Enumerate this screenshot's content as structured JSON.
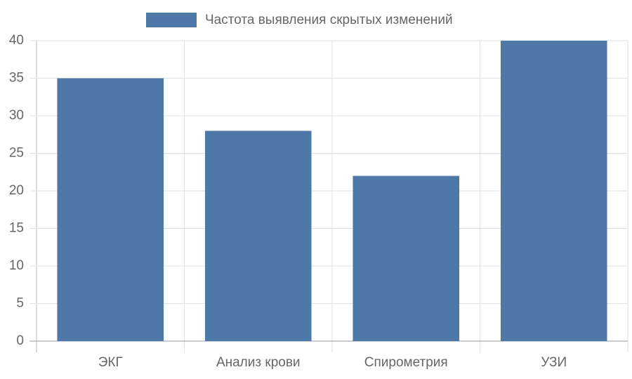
{
  "chart_data": {
    "type": "bar",
    "categories": [
      "ЭКГ",
      "Анализ крови",
      "Спирометрия",
      "УЗИ"
    ],
    "series": [
      {
        "name": "Частота выявления скрытых изменений",
        "color": "#4e78a7",
        "values": [
          35,
          28,
          22,
          40
        ]
      }
    ],
    "ylim": [
      0,
      40
    ],
    "yticks": [
      0,
      5,
      10,
      15,
      20,
      25,
      30,
      35,
      40
    ],
    "grid": true,
    "legend": "top"
  }
}
